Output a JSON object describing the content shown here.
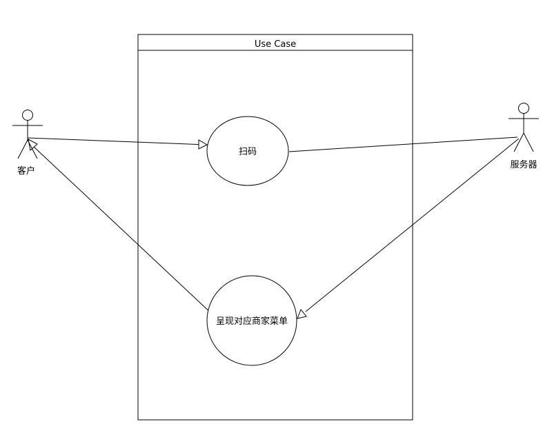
{
  "system_boundary": {
    "title": "Use Case"
  },
  "actors": {
    "customer": {
      "label": "客户"
    },
    "server": {
      "label": "服务器"
    }
  },
  "use_cases": {
    "scan": {
      "label": "扫码"
    },
    "show_menu": {
      "label": "呈现对应商家菜单"
    }
  },
  "colors": {
    "stroke": "#000000",
    "background": "#ffffff"
  }
}
